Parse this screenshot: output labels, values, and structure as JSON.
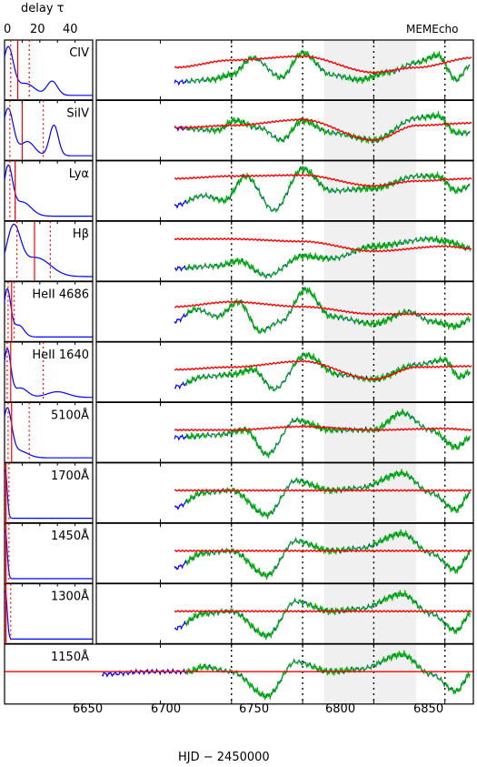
{
  "chart_data": {
    "type": "line",
    "legend_text": "MEMEcho",
    "left_axis": {
      "label": "delay τ",
      "top_ticks": [
        0,
        20,
        40
      ],
      "range": [
        0,
        50
      ]
    },
    "time_axis": {
      "label": "HJD − 2450000",
      "ticks": [
        6650,
        6700,
        6750,
        6800,
        6850
      ],
      "range": [
        6605,
        6870
      ]
    },
    "shaded_interval": [
      6765,
      6830
    ],
    "dotted_lines": [
      6700,
      6750,
      6800,
      6850
    ],
    "panels": [
      {
        "name": "CIV",
        "tf_peaks": [
          {
            "tau": 2,
            "w": 3,
            "a": 1.0
          },
          {
            "tau": 12,
            "w": 5,
            "a": 0.25
          },
          {
            "tau": 27,
            "w": 3,
            "a": 0.3
          }
        ],
        "median_lag": 7.5,
        "lag_err": [
          3.5,
          14
        ],
        "red": [
          [
            6660,
            0.55
          ],
          [
            6700,
            0.7
          ],
          [
            6750,
            0.78
          ],
          [
            6800,
            0.45
          ],
          [
            6830,
            0.55
          ],
          [
            6870,
            0.75
          ]
        ],
        "blue": [
          [
            6660,
            0.25
          ],
          [
            6685,
            0.3
          ],
          [
            6700,
            0.4
          ],
          [
            6715,
            0.75
          ],
          [
            6735,
            0.35
          ],
          [
            6750,
            0.85
          ],
          [
            6770,
            0.4
          ],
          [
            6790,
            0.3
          ],
          [
            6810,
            0.45
          ],
          [
            6830,
            0.65
          ],
          [
            6845,
            0.8
          ],
          [
            6858,
            0.3
          ],
          [
            6868,
            0.6
          ]
        ]
      },
      {
        "name": "SiIV",
        "tf_peaks": [
          {
            "tau": 2,
            "w": 3,
            "a": 1.0
          },
          {
            "tau": 13,
            "w": 4,
            "a": 0.3
          },
          {
            "tau": 28,
            "w": 2.5,
            "a": 0.65
          }
        ],
        "median_lag": 10,
        "lag_err": [
          3,
          22
        ],
        "red": [
          [
            6660,
            0.55
          ],
          [
            6700,
            0.6
          ],
          [
            6750,
            0.72
          ],
          [
            6800,
            0.3
          ],
          [
            6830,
            0.6
          ],
          [
            6870,
            0.65
          ]
        ],
        "blue": [
          [
            6660,
            0.55
          ],
          [
            6690,
            0.5
          ],
          [
            6702,
            0.7
          ],
          [
            6720,
            0.55
          ],
          [
            6735,
            0.3
          ],
          [
            6750,
            0.7
          ],
          [
            6770,
            0.45
          ],
          [
            6800,
            0.3
          ],
          [
            6830,
            0.75
          ],
          [
            6845,
            0.8
          ],
          [
            6858,
            0.45
          ],
          [
            6868,
            0.45
          ]
        ]
      },
      {
        "name": "Lyα",
        "tf_peaks": [
          {
            "tau": 2,
            "w": 2.5,
            "a": 1.0
          },
          {
            "tau": 10,
            "w": 5,
            "a": 0.3
          }
        ],
        "median_lag": 6,
        "lag_err": [
          3,
          6
        ],
        "red": [
          [
            6660,
            0.75
          ],
          [
            6700,
            0.8
          ],
          [
            6750,
            0.82
          ],
          [
            6800,
            0.6
          ],
          [
            6830,
            0.7
          ],
          [
            6870,
            0.75
          ]
        ],
        "blue": [
          [
            6660,
            0.2
          ],
          [
            6680,
            0.4
          ],
          [
            6695,
            0.3
          ],
          [
            6710,
            0.8
          ],
          [
            6730,
            0.1
          ],
          [
            6750,
            0.95
          ],
          [
            6770,
            0.5
          ],
          [
            6800,
            0.55
          ],
          [
            6830,
            0.8
          ],
          [
            6845,
            0.8
          ],
          [
            6858,
            0.5
          ],
          [
            6868,
            0.6
          ]
        ]
      },
      {
        "name": "Hβ",
        "tf_peaks": [
          {
            "tau": 5,
            "w": 4,
            "a": 1.0
          },
          {
            "tau": 18,
            "w": 8,
            "a": 0.4
          }
        ],
        "median_lag": 17,
        "lag_err": [
          7,
          26
        ],
        "red": [
          [
            6660,
            0.75
          ],
          [
            6700,
            0.75
          ],
          [
            6750,
            0.7
          ],
          [
            6800,
            0.5
          ],
          [
            6850,
            0.6
          ],
          [
            6870,
            0.55
          ]
        ],
        "blue": [
          [
            6660,
            0.15
          ],
          [
            6690,
            0.2
          ],
          [
            6705,
            0.3
          ],
          [
            6725,
            0.0
          ],
          [
            6750,
            0.4
          ],
          [
            6770,
            0.35
          ],
          [
            6800,
            0.6
          ],
          [
            6840,
            0.75
          ],
          [
            6850,
            0.7
          ],
          [
            6870,
            0.55
          ]
        ]
      },
      {
        "name": "HeII 4686",
        "tf_peaks": [
          {
            "tau": 1.5,
            "w": 2,
            "a": 1.0
          },
          {
            "tau": 8,
            "w": 3,
            "a": 0.25
          }
        ],
        "median_lag": 4,
        "lag_err": [
          2,
          5.5
        ],
        "red": [
          [
            6660,
            0.6
          ],
          [
            6700,
            0.7
          ],
          [
            6750,
            0.6
          ],
          [
            6800,
            0.45
          ],
          [
            6850,
            0.45
          ],
          [
            6870,
            0.45
          ]
        ],
        "blue": [
          [
            6660,
            0.3
          ],
          [
            6675,
            0.55
          ],
          [
            6690,
            0.4
          ],
          [
            6705,
            0.7
          ],
          [
            6720,
            0.1
          ],
          [
            6735,
            0.3
          ],
          [
            6752,
            0.95
          ],
          [
            6770,
            0.4
          ],
          [
            6800,
            0.25
          ],
          [
            6825,
            0.5
          ],
          [
            6840,
            0.3
          ],
          [
            6858,
            0.2
          ],
          [
            6868,
            0.35
          ]
        ]
      },
      {
        "name": "HeII 1640",
        "tf_peaks": [
          {
            "tau": 1.5,
            "w": 2,
            "a": 1.0
          },
          {
            "tau": 9,
            "w": 4,
            "a": 0.2
          },
          {
            "tau": 30,
            "w": 6,
            "a": 0.12
          }
        ],
        "median_lag": 3.5,
        "lag_err": [
          1.5,
          22
        ],
        "red": [
          [
            6660,
            0.55
          ],
          [
            6700,
            0.6
          ],
          [
            6750,
            0.72
          ],
          [
            6800,
            0.35
          ],
          [
            6830,
            0.6
          ],
          [
            6870,
            0.62
          ]
        ],
        "blue": [
          [
            6660,
            0.2
          ],
          [
            6680,
            0.4
          ],
          [
            6700,
            0.45
          ],
          [
            6715,
            0.55
          ],
          [
            6730,
            0.15
          ],
          [
            6752,
            0.85
          ],
          [
            6775,
            0.45
          ],
          [
            6800,
            0.35
          ],
          [
            6830,
            0.65
          ],
          [
            6850,
            0.75
          ],
          [
            6860,
            0.4
          ],
          [
            6868,
            0.5
          ]
        ]
      },
      {
        "name": "5100Å",
        "tf_peaks": [
          {
            "tau": 1.5,
            "w": 2.5,
            "a": 1.0
          },
          {
            "tau": 8,
            "w": 5,
            "a": 0.15
          }
        ],
        "median_lag": 4,
        "lag_err": [
          2,
          14
        ],
        "red": [
          [
            6660,
            0.55
          ],
          [
            6700,
            0.55
          ],
          [
            6750,
            0.62
          ],
          [
            6800,
            0.55
          ],
          [
            6850,
            0.58
          ],
          [
            6870,
            0.55
          ]
        ],
        "blue": [
          [
            6660,
            0.4
          ],
          [
            6690,
            0.45
          ],
          [
            6710,
            0.55
          ],
          [
            6725,
            0.05
          ],
          [
            6745,
            0.75
          ],
          [
            6770,
            0.55
          ],
          [
            6800,
            0.55
          ],
          [
            6820,
            0.9
          ],
          [
            6840,
            0.55
          ],
          [
            6858,
            0.2
          ],
          [
            6868,
            0.4
          ]
        ]
      },
      {
        "name": "1700Å",
        "tf_peaks": [
          {
            "tau": 0.5,
            "w": 1,
            "a": 1.0
          }
        ],
        "median_lag": 0.8,
        "lag_err": [
          0.3,
          2.5
        ],
        "red": [
          [
            6660,
            0.55
          ],
          [
            6700,
            0.55
          ],
          [
            6750,
            0.55
          ],
          [
            6800,
            0.55
          ],
          [
            6850,
            0.55
          ],
          [
            6870,
            0.55
          ]
        ],
        "blue": [
          [
            6660,
            0.2
          ],
          [
            6680,
            0.5
          ],
          [
            6700,
            0.55
          ],
          [
            6725,
            0.05
          ],
          [
            6745,
            0.75
          ],
          [
            6770,
            0.55
          ],
          [
            6790,
            0.6
          ],
          [
            6820,
            0.9
          ],
          [
            6840,
            0.5
          ],
          [
            6858,
            0.15
          ],
          [
            6868,
            0.5
          ]
        ]
      },
      {
        "name": "1450Å",
        "tf_peaks": [
          {
            "tau": 0.5,
            "w": 1,
            "a": 1.0
          }
        ],
        "median_lag": 0.8,
        "lag_err": [
          0.3,
          2.5
        ],
        "red": [
          [
            6660,
            0.55
          ],
          [
            6700,
            0.55
          ],
          [
            6750,
            0.55
          ],
          [
            6800,
            0.55
          ],
          [
            6850,
            0.55
          ],
          [
            6870,
            0.55
          ]
        ],
        "blue": [
          [
            6660,
            0.2
          ],
          [
            6680,
            0.5
          ],
          [
            6700,
            0.55
          ],
          [
            6725,
            0.05
          ],
          [
            6745,
            0.75
          ],
          [
            6770,
            0.55
          ],
          [
            6790,
            0.6
          ],
          [
            6820,
            0.9
          ],
          [
            6840,
            0.5
          ],
          [
            6858,
            0.15
          ],
          [
            6868,
            0.5
          ]
        ]
      },
      {
        "name": "1300Å",
        "tf_peaks": [
          {
            "tau": 0.5,
            "w": 1,
            "a": 1.0
          }
        ],
        "median_lag": 0.8,
        "lag_err": [
          0.3,
          3.5
        ],
        "red": [
          [
            6660,
            0.55
          ],
          [
            6700,
            0.55
          ],
          [
            6750,
            0.55
          ],
          [
            6800,
            0.55
          ],
          [
            6850,
            0.55
          ],
          [
            6870,
            0.55
          ]
        ],
        "blue": [
          [
            6660,
            0.2
          ],
          [
            6680,
            0.5
          ],
          [
            6700,
            0.55
          ],
          [
            6725,
            0.05
          ],
          [
            6745,
            0.75
          ],
          [
            6770,
            0.55
          ],
          [
            6790,
            0.6
          ],
          [
            6820,
            0.9
          ],
          [
            6840,
            0.5
          ],
          [
            6858,
            0.15
          ],
          [
            6868,
            0.5
          ]
        ]
      },
      {
        "name": "1150Å",
        "tf_peaks": [],
        "median_lag": null,
        "lag_err": [],
        "red": [
          [
            6605,
            0.55
          ],
          [
            6870,
            0.55
          ]
        ],
        "blue": [
          [
            6612,
            0.5
          ],
          [
            6640,
            0.55
          ],
          [
            6670,
            0.55
          ],
          [
            6680,
            0.65
          ],
          [
            6700,
            0.55
          ],
          [
            6725,
            0.05
          ],
          [
            6745,
            0.75
          ],
          [
            6770,
            0.55
          ],
          [
            6790,
            0.6
          ],
          [
            6820,
            0.9
          ],
          [
            6840,
            0.5
          ],
          [
            6858,
            0.15
          ],
          [
            6868,
            0.5
          ]
        ]
      }
    ]
  }
}
